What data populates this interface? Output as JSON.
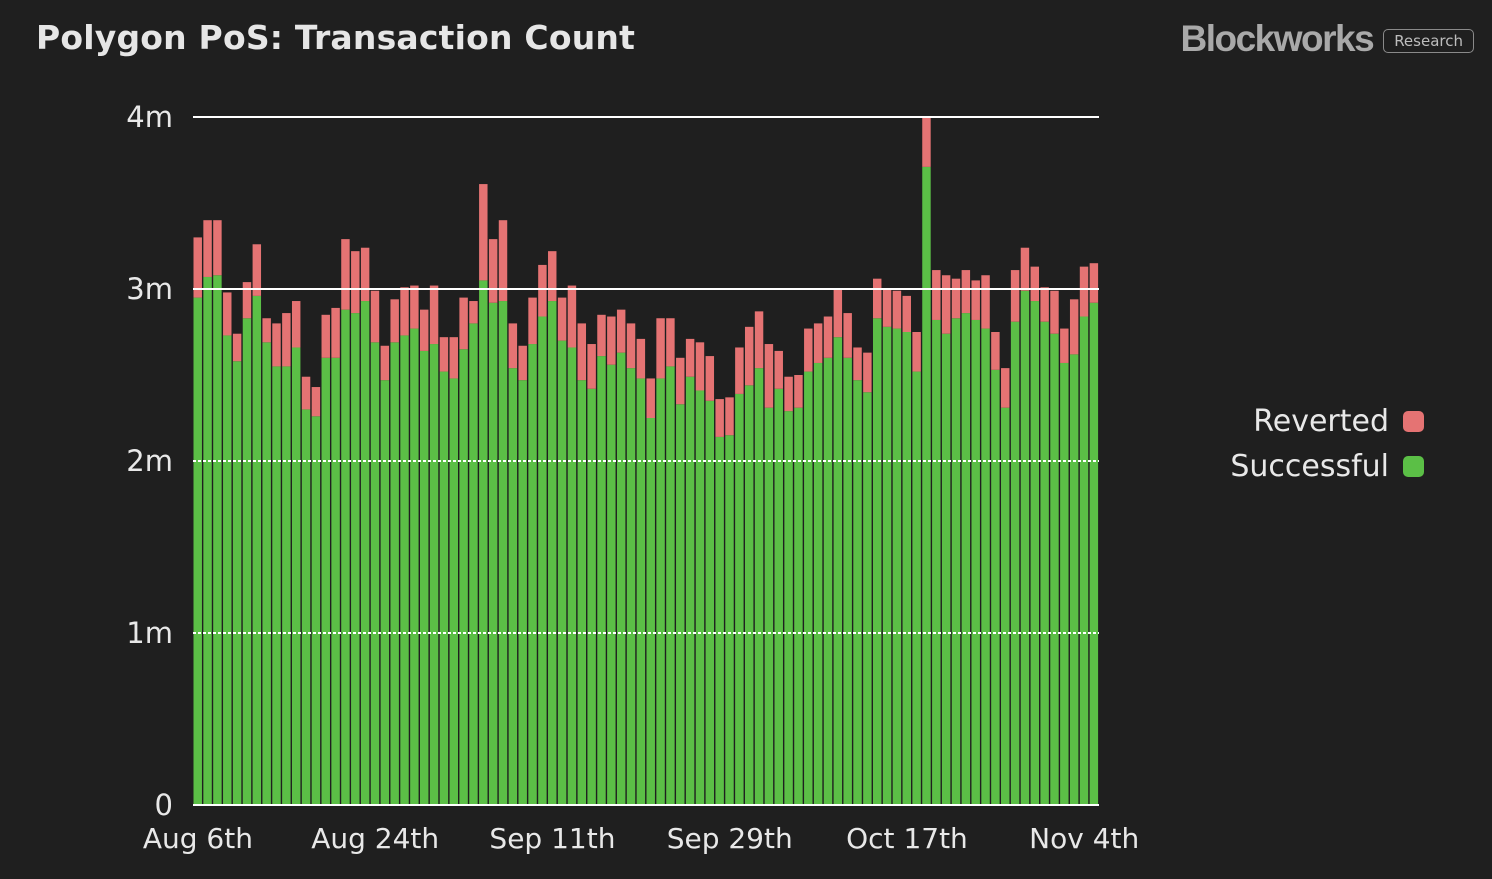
{
  "header": {
    "title": "Polygon PoS: Transaction Count",
    "brand": "Blockworks",
    "brand_tag": "Research"
  },
  "colors": {
    "background": "#1f1f1f",
    "successful": "#5bbf46",
    "reverted": "#e57373",
    "gridline": "#ffffff",
    "text": "#e8e8e8"
  },
  "legend": {
    "items": [
      {
        "label": "Reverted",
        "color": "#e57373"
      },
      {
        "label": "Successful",
        "color": "#5bbf46"
      }
    ],
    "placement": "right"
  },
  "chart_data": {
    "type": "bar",
    "stacked": true,
    "title": "Polygon PoS: Transaction Count",
    "xlabel": "",
    "ylabel": "",
    "ylim": [
      0,
      4000000
    ],
    "yticks": [
      {
        "value": 0,
        "label": "0"
      },
      {
        "value": 1000000,
        "label": "1m"
      },
      {
        "value": 2000000,
        "label": "2m"
      },
      {
        "value": 3000000,
        "label": "3m"
      },
      {
        "value": 4000000,
        "label": "4m"
      }
    ],
    "xtick_labels": [
      "Aug 6th",
      "Aug 24th",
      "Sep 11th",
      "Sep 29th",
      "Oct 17th",
      "Nov 4th"
    ],
    "categories": [
      "Aug 6",
      "Aug 7",
      "Aug 8",
      "Aug 9",
      "Aug 10",
      "Aug 11",
      "Aug 12",
      "Aug 13",
      "Aug 14",
      "Aug 15",
      "Aug 16",
      "Aug 17",
      "Aug 18",
      "Aug 19",
      "Aug 20",
      "Aug 21",
      "Aug 22",
      "Aug 23",
      "Aug 24",
      "Aug 25",
      "Aug 26",
      "Aug 27",
      "Aug 28",
      "Aug 29",
      "Aug 30",
      "Aug 31",
      "Sep 1",
      "Sep 2",
      "Sep 3",
      "Sep 4",
      "Sep 5",
      "Sep 6",
      "Sep 7",
      "Sep 8",
      "Sep 9",
      "Sep 10",
      "Sep 11",
      "Sep 12",
      "Sep 13",
      "Sep 14",
      "Sep 15",
      "Sep 16",
      "Sep 17",
      "Sep 18",
      "Sep 19",
      "Sep 20",
      "Sep 21",
      "Sep 22",
      "Sep 23",
      "Sep 24",
      "Sep 25",
      "Sep 26",
      "Sep 27",
      "Sep 28",
      "Sep 29",
      "Sep 30",
      "Oct 1",
      "Oct 2",
      "Oct 3",
      "Oct 4",
      "Oct 5",
      "Oct 6",
      "Oct 7",
      "Oct 8",
      "Oct 9",
      "Oct 10",
      "Oct 11",
      "Oct 12",
      "Oct 13",
      "Oct 14",
      "Oct 15",
      "Oct 16",
      "Oct 17",
      "Oct 18",
      "Oct 19",
      "Oct 20",
      "Oct 21",
      "Oct 22",
      "Oct 23",
      "Oct 24",
      "Oct 25",
      "Oct 26",
      "Oct 27",
      "Oct 28",
      "Oct 29",
      "Oct 30",
      "Oct 31",
      "Nov 1",
      "Nov 2",
      "Nov 3",
      "Nov 4",
      "Nov 5"
    ],
    "series": [
      {
        "name": "Successful",
        "color": "#5bbf46",
        "values": [
          2950000,
          3070000,
          3080000,
          2730000,
          2580000,
          2830000,
          2960000,
          2690000,
          2550000,
          2550000,
          2660000,
          2300000,
          2260000,
          2600000,
          2600000,
          2880000,
          2860000,
          2930000,
          2690000,
          2470000,
          2690000,
          2730000,
          2770000,
          2640000,
          2680000,
          2520000,
          2480000,
          2650000,
          2800000,
          3050000,
          2920000,
          2930000,
          2540000,
          2470000,
          2680000,
          2840000,
          2930000,
          2700000,
          2660000,
          2470000,
          2420000,
          2610000,
          2560000,
          2630000,
          2540000,
          2480000,
          2250000,
          2480000,
          2550000,
          2330000,
          2490000,
          2410000,
          2350000,
          2140000,
          2150000,
          2390000,
          2440000,
          2540000,
          2310000,
          2420000,
          2290000,
          2310000,
          2520000,
          2570000,
          2600000,
          2720000,
          2600000,
          2470000,
          2400000,
          2830000,
          2780000,
          2770000,
          2750000,
          2520000,
          3710000,
          2820000,
          2740000,
          2830000,
          2860000,
          2820000,
          2770000,
          2530000,
          2310000,
          2810000,
          2990000,
          2930000,
          2810000,
          2740000,
          2570000,
          2620000,
          2840000,
          2920000
        ]
      },
      {
        "name": "Reverted",
        "color": "#e57373",
        "values": [
          350000,
          330000,
          320000,
          250000,
          160000,
          210000,
          300000,
          140000,
          250000,
          310000,
          270000,
          190000,
          170000,
          250000,
          290000,
          410000,
          360000,
          310000,
          300000,
          200000,
          250000,
          280000,
          250000,
          240000,
          340000,
          200000,
          240000,
          300000,
          130000,
          560000,
          370000,
          470000,
          260000,
          200000,
          270000,
          300000,
          290000,
          250000,
          360000,
          330000,
          260000,
          240000,
          280000,
          250000,
          260000,
          230000,
          230000,
          350000,
          280000,
          270000,
          220000,
          280000,
          260000,
          220000,
          220000,
          270000,
          340000,
          330000,
          370000,
          220000,
          200000,
          190000,
          250000,
          230000,
          240000,
          280000,
          260000,
          190000,
          230000,
          230000,
          220000,
          220000,
          210000,
          230000,
          290000,
          290000,
          340000,
          230000,
          250000,
          230000,
          310000,
          220000,
          230000,
          300000,
          250000,
          200000,
          200000,
          250000,
          200000,
          320000,
          290000,
          230000
        ]
      }
    ]
  }
}
